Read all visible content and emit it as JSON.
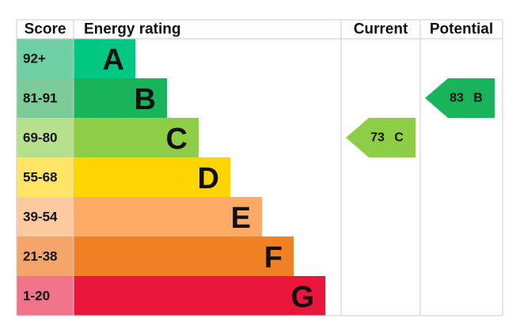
{
  "header": {
    "score": "Score",
    "rating": "Energy rating",
    "current": "Current",
    "potential": "Potential"
  },
  "bands": [
    {
      "score": "92+",
      "letter": "A",
      "color": "#00c781",
      "score_color": "#6fcfa5"
    },
    {
      "score": "81-91",
      "letter": "B",
      "color": "#19b459",
      "score_color": "#7ccb98"
    },
    {
      "score": "69-80",
      "letter": "C",
      "color": "#8dce46",
      "score_color": "#b7e08c"
    },
    {
      "score": "55-68",
      "letter": "D",
      "color": "#ffd500",
      "score_color": "#ffe466"
    },
    {
      "score": "39-54",
      "letter": "E",
      "color": "#fcaa65",
      "score_color": "#fdcaa0"
    },
    {
      "score": "21-38",
      "letter": "F",
      "color": "#ef8023",
      "score_color": "#f4a66a"
    },
    {
      "score": "1-20",
      "letter": "G",
      "color": "#e9153b",
      "score_color": "#f0738a"
    }
  ],
  "current": {
    "value": 73,
    "letter": "C"
  },
  "potential": {
    "value": 83,
    "letter": "B"
  }
}
